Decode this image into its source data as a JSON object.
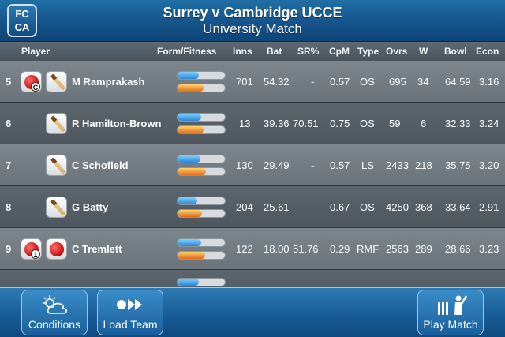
{
  "header": {
    "fc_line1": "FC",
    "fc_line2": "CA",
    "title": "Surrey v Cambridge UCCE",
    "subtitle": "University Match"
  },
  "columns": {
    "player": "Player",
    "form_fitness": "Form/Fitness",
    "inns": "Inns",
    "bat": "Bat",
    "sr": "SR%",
    "cpm": "CpM",
    "type": "Type",
    "ovrs": "Ovrs",
    "w": "W",
    "bowl": "Bowl",
    "econ": "Econ"
  },
  "rows": [
    {
      "num": "5",
      "icons": [
        "ball-captain",
        "bat"
      ],
      "ball_tag": "C",
      "name": "M Ramprakash",
      "form": 0.45,
      "fitness": 0.55,
      "inns": "701",
      "bat": "54.32",
      "sr": "-",
      "cpm": "0.57",
      "type": "OS",
      "ovrs": "695",
      "w": "34",
      "bowl": "64.59",
      "econ": "3.16"
    },
    {
      "num": "6",
      "icons": [
        "bat"
      ],
      "name": "R Hamilton-Brown",
      "form": 0.5,
      "fitness": 0.55,
      "inns": "13",
      "bat": "39.36",
      "sr": "70.51",
      "cpm": "0.75",
      "type": "OS",
      "ovrs": "59",
      "w": "6",
      "bowl": "32.33",
      "econ": "3.24"
    },
    {
      "num": "7",
      "icons": [
        "bat-ball"
      ],
      "name": "C Schofield",
      "form": 0.48,
      "fitness": 0.6,
      "inns": "130",
      "bat": "29.49",
      "sr": "-",
      "cpm": "0.57",
      "type": "LS",
      "ovrs": "2433",
      "w": "218",
      "bowl": "35.75",
      "econ": "3.20"
    },
    {
      "num": "8",
      "icons": [
        "bat-ball"
      ],
      "name": "G Batty",
      "form": 0.42,
      "fitness": 0.52,
      "inns": "204",
      "bat": "25.61",
      "sr": "-",
      "cpm": "0.67",
      "type": "OS",
      "ovrs": "4250",
      "w": "368",
      "bowl": "33.64",
      "econ": "2.91"
    },
    {
      "num": "9",
      "icons": [
        "ball-new",
        "ball"
      ],
      "ball_tag": "1",
      "name": "C Tremlett",
      "form": 0.5,
      "fitness": 0.58,
      "inns": "122",
      "bat": "18.00",
      "sr": "51.76",
      "cpm": "0.29",
      "type": "RMF",
      "ovrs": "2563",
      "w": "289",
      "bowl": "28.66",
      "econ": "3.23"
    }
  ],
  "footer": {
    "conditions": "Conditions",
    "load_team": "Load Team",
    "play_match": "Play Match"
  },
  "colors": {
    "header_blue": "#1f6fa6",
    "form_bar": "#2a86d6",
    "fitness_bar": "#e06a1a",
    "row_light": "#7d868d",
    "row_dark": "#5c656d"
  }
}
